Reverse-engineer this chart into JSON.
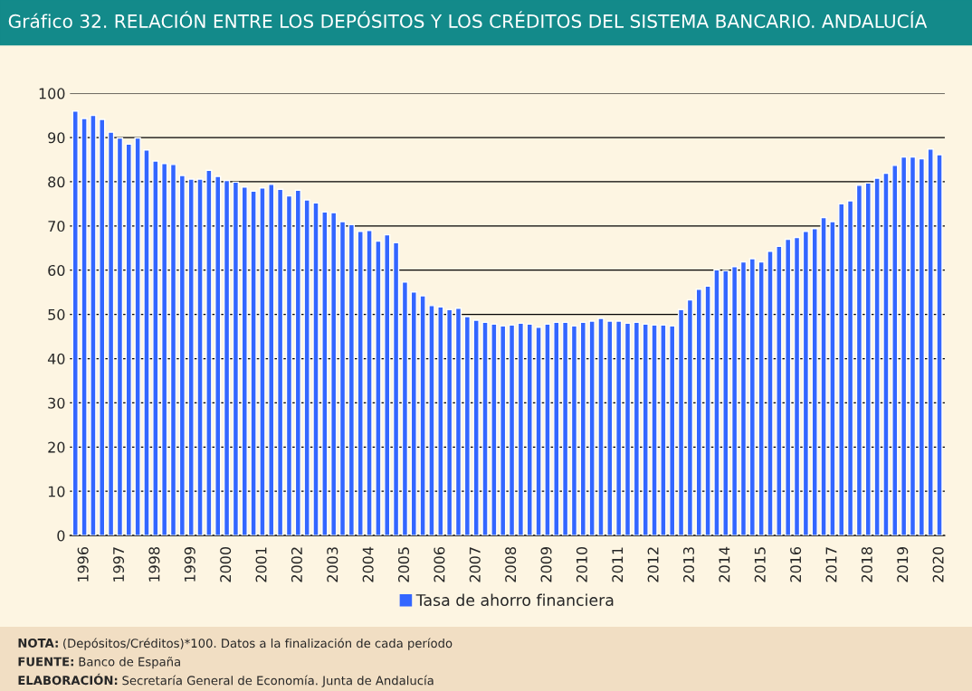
{
  "chart_data": {
    "type": "bar",
    "title": "Gráfico 32. RELACIÓN ENTRE LOS DEPÓSITOS Y LOS CRÉDITOS DEL SISTEMA BANCARIO. ANDALUCÍA",
    "categories": [
      null,
      "1996",
      null,
      null,
      null,
      "1997",
      null,
      null,
      null,
      "1998",
      null,
      null,
      null,
      "1999",
      null,
      null,
      null,
      "2000",
      null,
      null,
      null,
      "2001",
      null,
      null,
      null,
      "2002",
      null,
      null,
      null,
      "2003",
      null,
      null,
      null,
      "2004",
      null,
      null,
      null,
      "2005",
      null,
      null,
      null,
      "2006",
      null,
      null,
      null,
      "2007",
      null,
      null,
      null,
      "2008",
      null,
      null,
      null,
      "2009",
      null,
      null,
      null,
      "2010",
      null,
      null,
      null,
      "2011",
      null,
      null,
      null,
      "2012",
      null,
      null,
      null,
      "2013",
      null,
      null,
      null,
      "2014",
      null,
      null,
      null,
      "2015",
      null,
      null,
      null,
      "2016",
      null,
      null,
      null,
      "2017",
      null,
      null,
      null,
      "2018",
      null,
      null,
      null,
      "2019",
      null,
      null,
      null,
      "2020"
    ],
    "series": [
      {
        "name": "Tasa de ahorro financiera",
        "color": "#3366ff",
        "values": [
          96.0,
          94.3,
          95.0,
          94.1,
          91.2,
          89.9,
          88.5,
          89.9,
          87.2,
          84.7,
          84.1,
          83.9,
          81.4,
          80.6,
          80.6,
          82.6,
          81.2,
          80.3,
          79.9,
          78.8,
          77.9,
          78.6,
          79.4,
          78.3,
          76.8,
          78.1,
          75.9,
          75.2,
          73.2,
          73.0,
          71.0,
          70.3,
          68.8,
          69.0,
          66.6,
          68.0,
          66.2,
          57.3,
          55.1,
          54.2,
          52.0,
          51.7,
          51.1,
          51.4,
          49.5,
          48.7,
          48.2,
          47.8,
          47.4,
          47.6,
          48.0,
          47.8,
          47.1,
          47.8,
          48.2,
          48.2,
          47.4,
          48.2,
          48.5,
          49.1,
          48.5,
          48.5,
          48.0,
          48.2,
          47.8,
          47.6,
          47.6,
          47.4,
          51.1,
          53.3,
          55.7,
          56.4,
          60.1,
          59.9,
          60.8,
          61.9,
          62.6,
          61.9,
          64.3,
          65.4,
          67.0,
          67.4,
          68.8,
          69.4,
          71.9,
          71.0,
          75.0,
          75.7,
          79.2,
          79.7,
          80.8,
          81.9,
          83.7,
          85.6,
          85.6,
          85.2,
          87.4,
          86.1
        ]
      }
    ],
    "ylim": [
      0,
      100
    ],
    "yticks": [
      0,
      10,
      20,
      30,
      40,
      50,
      60,
      70,
      80,
      90,
      100
    ],
    "grid": "y",
    "legend": "bottom",
    "annotations": [
      "NOTA: (Depósitos/Créditos)*100. Datos a la finalización de cada período",
      "FUENTE: Banco de España",
      "ELABORACIÓN: Secretaría General de Economía. Junta de Andalucía"
    ]
  }
}
